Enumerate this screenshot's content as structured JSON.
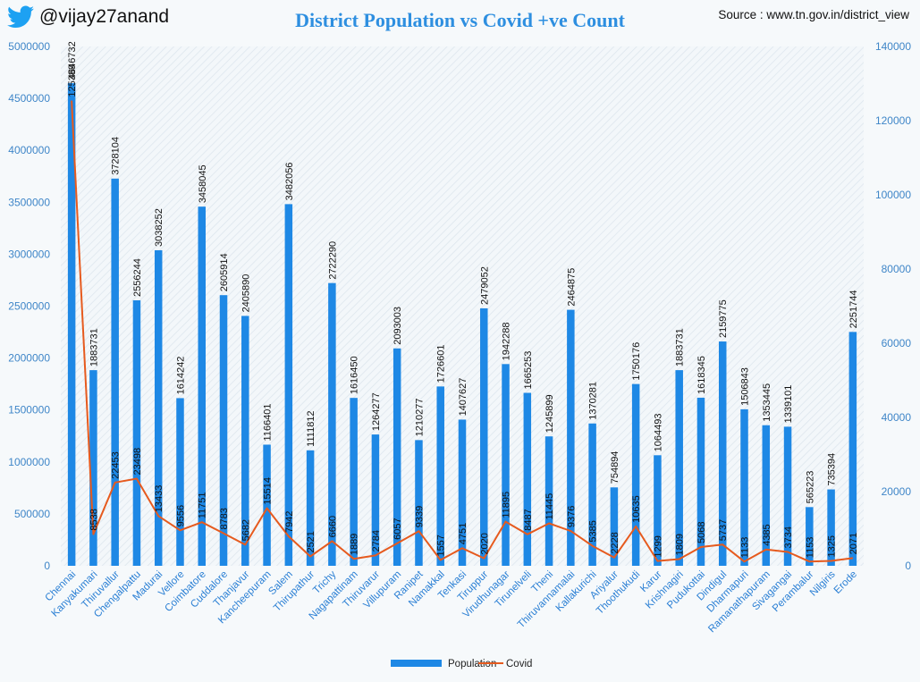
{
  "header": {
    "handle": "@vijay27anand",
    "title": "District Population vs Covid +ve  Count",
    "source": "Source : www.tn.gov.in/district_view"
  },
  "colors": {
    "population": "#1e88e5",
    "covid": "#e65a1e",
    "accent": "#2e8fe0"
  },
  "icons": {
    "twitter": "twitter-bird-icon"
  },
  "chart_data": {
    "type": "bar",
    "title": "District Population vs Covid +ve  Count",
    "categories": [
      "Chennai",
      "Kanyakumari",
      "Thiruvallur",
      "Chengalpattu",
      "Madurai",
      "Vellore",
      "Coimbatore",
      "Cuddalore",
      "Thanjavur",
      "Kancheepuram",
      "Salem",
      "Thirupathur",
      "Trichy",
      "Nagapattinam",
      "Thiruvarur",
      "Villupuram",
      "Ranipet",
      "Namakkal",
      "Tenkasi",
      "Tiruppur",
      "Virudhunagar",
      "Tirunelveli",
      "Theni",
      "Thiruvannamalai",
      "Kallakurichi",
      "Ariyalur",
      "Thoothukudi",
      "Karur",
      "Krishnagiri",
      "Pudukottai",
      "Dindigul",
      "Dharmapuri",
      "Ramanathapuram",
      "Sivagangai",
      "Perambalur",
      "Nilgiris",
      "Erode"
    ],
    "series": [
      {
        "name": "Population",
        "type": "bar",
        "axis": "left",
        "values": [
          4646732,
          1883731,
          3728104,
          2556244,
          3038252,
          1614242,
          3458045,
          2605914,
          2405890,
          1166401,
          3482056,
          1111812,
          2722290,
          1616450,
          1264277,
          2093003,
          1210277,
          1726601,
          1407627,
          2479052,
          1942288,
          1665253,
          1245899,
          2464875,
          1370281,
          754894,
          1750176,
          1064493,
          1883731,
          1618345,
          2159775,
          1506843,
          1353445,
          1339101,
          565223,
          735394,
          2251744
        ]
      },
      {
        "name": "Covid",
        "type": "line",
        "axis": "right",
        "values": [
          125389,
          8538,
          22453,
          23498,
          13433,
          9556,
          11751,
          8783,
          5682,
          15514,
          7942,
          2521,
          6660,
          1889,
          2784,
          6057,
          9339,
          1557,
          4751,
          2020,
          11895,
          8487,
          11445,
          9376,
          5385,
          2228,
          10635,
          1299,
          1809,
          5068,
          5737,
          1133,
          4385,
          3734,
          1153,
          1325,
          2071
        ]
      }
    ],
    "left_axis": {
      "ylim": [
        0,
        5000000
      ],
      "ticks": [
        "0",
        "500000",
        "1000000",
        "1500000",
        "2000000",
        "2500000",
        "3000000",
        "3500000",
        "4000000",
        "4500000",
        "5000000"
      ]
    },
    "right_axis": {
      "ylim": [
        0,
        140000
      ],
      "ticks": [
        "0",
        "20000",
        "40000",
        "60000",
        "80000",
        "100000",
        "120000",
        "140000"
      ]
    },
    "legend": {
      "position": "bottom",
      "items": [
        "Population",
        "Covid"
      ]
    },
    "grid": false
  }
}
